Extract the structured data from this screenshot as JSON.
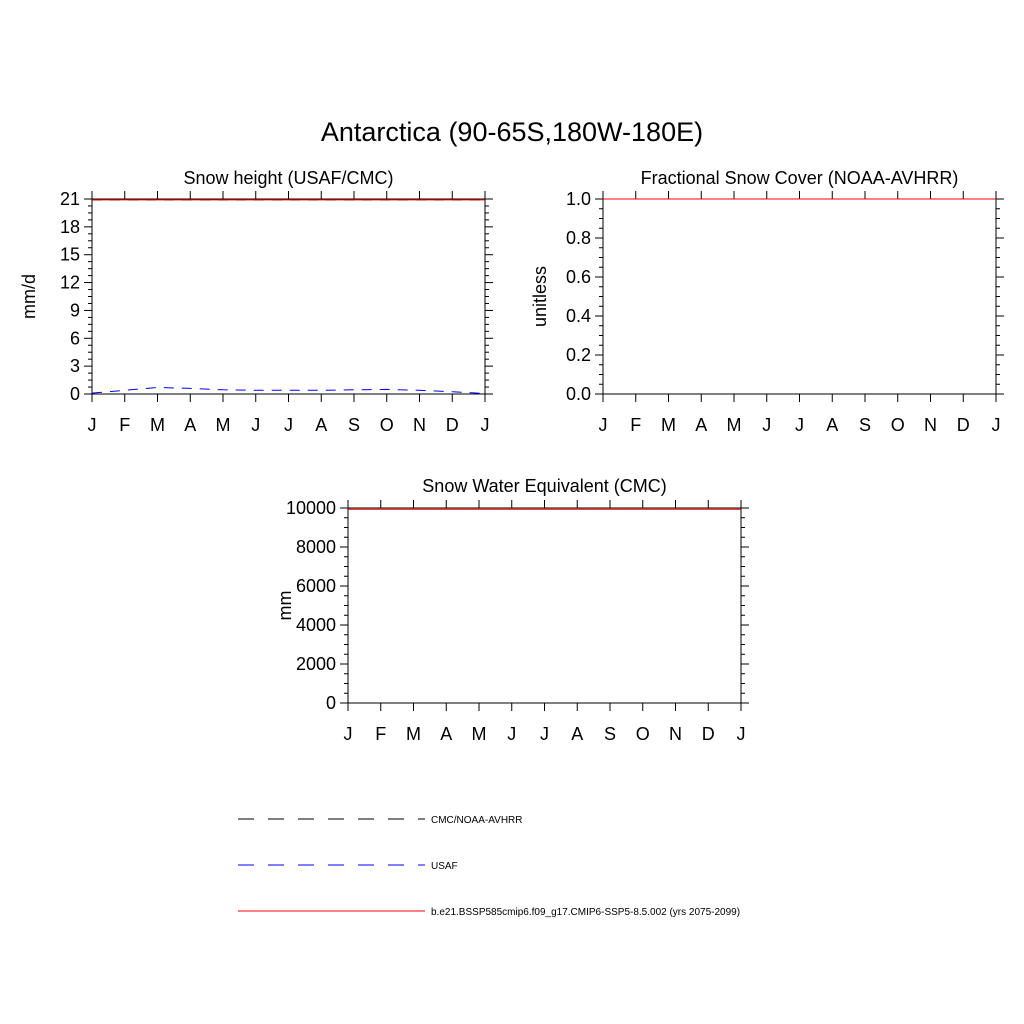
{
  "figure": {
    "title": "Antarctica (90-65S,180W-180E)"
  },
  "months": [
    "J",
    "F",
    "M",
    "A",
    "M",
    "J",
    "J",
    "A",
    "S",
    "O",
    "N",
    "D",
    "J"
  ],
  "colors": {
    "obs1": "#000000",
    "obs2": "#0000ff",
    "model": "#ff0000",
    "frame": "#000000"
  },
  "chart_data": [
    {
      "type": "line",
      "title": "Snow height (USAF/CMC)",
      "xlabel": "",
      "ylabel": "mm/d",
      "ylim": [
        0,
        21
      ],
      "yticks": [
        0,
        3,
        6,
        9,
        12,
        15,
        18,
        21
      ],
      "ytick_labels": [
        "0",
        "3",
        "6",
        "9",
        "12",
        "15",
        "18",
        "21"
      ],
      "x": [
        1,
        2,
        3,
        4,
        5,
        6,
        7,
        8,
        9,
        10,
        11,
        12,
        13
      ],
      "series": [
        {
          "name": "CMC/NOAA-AVHRR",
          "style": "dashed",
          "color": "#000000",
          "values": [
            20.9,
            20.9,
            20.9,
            20.9,
            20.9,
            20.9,
            20.9,
            20.9,
            20.9,
            20.9,
            20.9,
            20.9,
            20.9
          ]
        },
        {
          "name": "USAF",
          "style": "dashed",
          "color": "#0000ff",
          "values": [
            0.1,
            0.4,
            0.7,
            0.6,
            0.45,
            0.4,
            0.4,
            0.4,
            0.45,
            0.5,
            0.4,
            0.25,
            0.05
          ]
        },
        {
          "name": "b.e21.BSSP585cmip6.f09_g17.CMIP6-SSP5-8.5.002 (yrs 2075-2099)",
          "style": "solid",
          "color": "#ff0000",
          "values": [
            20.9,
            20.9,
            20.9,
            20.9,
            20.9,
            20.9,
            20.9,
            20.9,
            20.9,
            20.9,
            20.9,
            20.9,
            20.9
          ]
        }
      ]
    },
    {
      "type": "line",
      "title": "Fractional Snow Cover (NOAA-AVHRR)",
      "xlabel": "",
      "ylabel": "unitless",
      "ylim": [
        0,
        1.0
      ],
      "yticks": [
        0,
        0.2,
        0.4,
        0.6,
        0.8,
        1.0
      ],
      "ytick_labels": [
        "0.0",
        "0.2",
        "0.4",
        "0.6",
        "0.8",
        "1.0"
      ],
      "x": [
        1,
        2,
        3,
        4,
        5,
        6,
        7,
        8,
        9,
        10,
        11,
        12,
        13
      ],
      "series": [
        {
          "name": "CMC/NOAA-AVHRR",
          "style": "dashed",
          "color": "#000000",
          "values": [
            0,
            0,
            0,
            0,
            0,
            0,
            0,
            0,
            0,
            0,
            0,
            0,
            0
          ]
        },
        {
          "name": "b.e21.BSSP585cmip6.f09_g17.CMIP6-SSP5-8.5.002 (yrs 2075-2099)",
          "style": "solid",
          "color": "#ff0000",
          "values": [
            1.0,
            1.0,
            1.0,
            1.0,
            1.0,
            1.0,
            1.0,
            1.0,
            1.0,
            1.0,
            1.0,
            1.0,
            1.0
          ]
        }
      ]
    },
    {
      "type": "line",
      "title": "Snow Water Equivalent (CMC)",
      "xlabel": "",
      "ylabel": "mm",
      "ylim": [
        0,
        10000
      ],
      "yticks": [
        0,
        2000,
        4000,
        6000,
        8000,
        10000
      ],
      "ytick_labels": [
        "0",
        "2000",
        "4000",
        "6000",
        "8000",
        "10000"
      ],
      "x": [
        1,
        2,
        3,
        4,
        5,
        6,
        7,
        8,
        9,
        10,
        11,
        12,
        13
      ],
      "series": [
        {
          "name": "b.e21.BSSP585cmip6.f09_g17.CMIP6-SSP5-8.5.002 (yrs 2075-2099)",
          "style": "solid",
          "color": "#ff0000",
          "values": [
            9940,
            9940,
            9940,
            9940,
            9940,
            9940,
            9940,
            9940,
            9940,
            9940,
            9940,
            9940,
            9940
          ]
        }
      ]
    }
  ],
  "legend": {
    "items": [
      {
        "label": "CMC/NOAA-AVHRR",
        "style": "dashed",
        "color": "#000000"
      },
      {
        "label": "USAF",
        "style": "dashed",
        "color": "#0000ff"
      },
      {
        "label": "b.e21.BSSP585cmip6.f09_g17.CMIP6-SSP5-8.5.002 (yrs 2075-2099)",
        "style": "solid",
        "color": "#ff0000"
      }
    ]
  }
}
